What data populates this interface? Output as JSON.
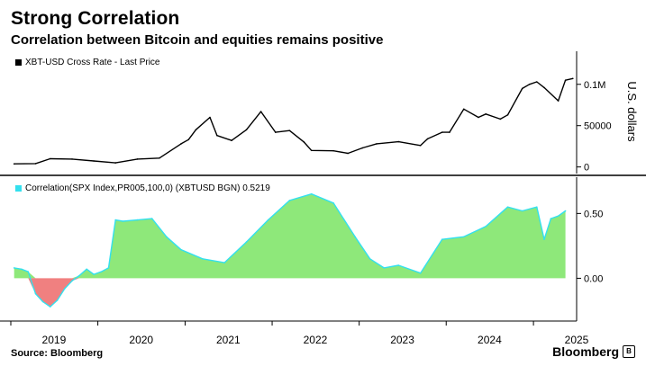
{
  "header": {
    "title": "Strong Correlation",
    "subtitle": "Correlation between Bitcoin and equities remains positive"
  },
  "footer": {
    "source": "Source: Bloomberg",
    "brand": "Bloomberg",
    "brand_icon": "bloomberg-logo-icon"
  },
  "colors": {
    "price_line": "#000000",
    "corr_line": "#33e0ee",
    "corr_pos_fill": "#8ee87a",
    "corr_neg_fill": "#f08080",
    "axis": "#000000"
  },
  "chart_data": [
    {
      "type": "line",
      "legend": "XBT-USD Cross Rate - Last Price",
      "ylabel": "U.S. dollars",
      "ylim": [
        -8000,
        140000
      ],
      "yticks": [
        0,
        50000,
        100000
      ],
      "yticklabels": [
        "0",
        "50000",
        "0.1M"
      ],
      "grid": false,
      "legend_position": "top-left",
      "x": [
        "2019-01",
        "2019-04",
        "2019-06",
        "2019-09",
        "2019-12",
        "2020-03",
        "2020-06",
        "2020-09",
        "2020-12",
        "2021-01",
        "2021-02",
        "2021-04",
        "2021-05",
        "2021-07",
        "2021-09",
        "2021-11",
        "2022-01",
        "2022-03",
        "2022-05",
        "2022-06",
        "2022-09",
        "2022-11",
        "2023-01",
        "2023-03",
        "2023-06",
        "2023-09",
        "2023-10",
        "2023-12",
        "2024-01",
        "2024-03",
        "2024-05",
        "2024-06",
        "2024-08",
        "2024-09",
        "2024-11",
        "2024-12",
        "2025-01",
        "2025-02",
        "2025-04",
        "2025-05",
        "2025-06"
      ],
      "values": [
        3700,
        4100,
        10000,
        9500,
        7200,
        5000,
        9500,
        10700,
        28000,
        33000,
        45000,
        60000,
        38000,
        32000,
        45000,
        67000,
        42000,
        44000,
        30000,
        20000,
        19500,
        16500,
        23000,
        28000,
        30500,
        26000,
        34000,
        42000,
        42000,
        70000,
        60000,
        64000,
        58000,
        63000,
        95000,
        100000,
        103000,
        96000,
        80000,
        105000,
        107000
      ]
    },
    {
      "type": "area",
      "legend": "Correlation(SPX Index,PR005,100,0) (XBTUSD BGN) 0.5219",
      "ylim": [
        -0.33,
        0.78
      ],
      "yticks": [
        0.0,
        0.5
      ],
      "yticklabels": [
        "0.00",
        "0.50"
      ],
      "grid": false,
      "legend_position": "top-left",
      "x": [
        "2019-01",
        "2019-02",
        "2019-03",
        "2019-04",
        "2019-05",
        "2019-06",
        "2019-07",
        "2019-08",
        "2019-09",
        "2019-10",
        "2019-11",
        "2019-12",
        "2020-01",
        "2020-02",
        "2020-03",
        "2020-04",
        "2020-06",
        "2020-08",
        "2020-10",
        "2020-12",
        "2021-03",
        "2021-06",
        "2021-09",
        "2021-12",
        "2022-03",
        "2022-06",
        "2022-09",
        "2022-12",
        "2023-02",
        "2023-04",
        "2023-06",
        "2023-09",
        "2023-12",
        "2024-03",
        "2024-06",
        "2024-09",
        "2024-11",
        "2025-01",
        "2025-02",
        "2025-03",
        "2025-04",
        "2025-05"
      ],
      "values": [
        0.08,
        0.07,
        0.05,
        -0.12,
        -0.18,
        -0.22,
        -0.17,
        -0.08,
        -0.02,
        0.02,
        0.07,
        0.03,
        0.05,
        0.08,
        0.45,
        0.44,
        0.45,
        0.46,
        0.32,
        0.22,
        0.15,
        0.12,
        0.28,
        0.45,
        0.6,
        0.65,
        0.58,
        0.32,
        0.15,
        0.08,
        0.1,
        0.04,
        0.3,
        0.32,
        0.4,
        0.55,
        0.52,
        0.55,
        0.3,
        0.46,
        0.48,
        0.52
      ]
    }
  ],
  "x_axis": {
    "tick_labels": [
      "2019",
      "2020",
      "2021",
      "2022",
      "2023",
      "2024",
      "2025"
    ]
  }
}
